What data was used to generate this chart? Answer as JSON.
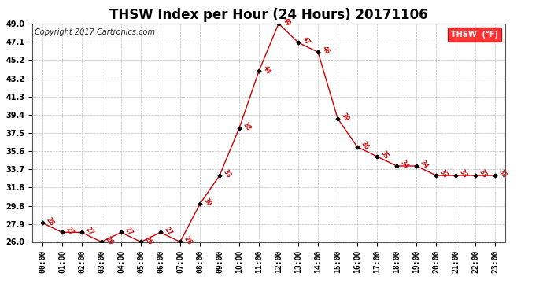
{
  "title": "THSW Index per Hour (24 Hours) 20171106",
  "copyright": "Copyright 2017 Cartronics.com",
  "legend_label": "THSW  (°F)",
  "hours": [
    "00:00",
    "01:00",
    "02:00",
    "03:00",
    "04:00",
    "05:00",
    "06:00",
    "07:00",
    "08:00",
    "09:00",
    "10:00",
    "11:00",
    "12:00",
    "13:00",
    "14:00",
    "15:00",
    "16:00",
    "17:00",
    "18:00",
    "19:00",
    "20:00",
    "21:00",
    "22:00",
    "23:00"
  ],
  "values": [
    28,
    27,
    27,
    26,
    27,
    26,
    27,
    26,
    30,
    33,
    38,
    44,
    49,
    47,
    46,
    39,
    36,
    35,
    34,
    34,
    33,
    33,
    33,
    33
  ],
  "ylim_min": 26.0,
  "ylim_max": 49.0,
  "yticks": [
    26.0,
    27.9,
    29.8,
    31.8,
    33.7,
    35.6,
    37.5,
    39.4,
    41.3,
    43.2,
    45.2,
    47.1,
    49.0
  ],
  "line_color": "#cc0000",
  "marker_color": "#000000",
  "label_color": "#cc0000",
  "background_color": "#ffffff",
  "grid_color": "#bbbbbb",
  "title_fontsize": 12,
  "tick_fontsize": 7,
  "label_fontsize": 6.5,
  "copyright_fontsize": 7,
  "legend_fontsize": 7
}
